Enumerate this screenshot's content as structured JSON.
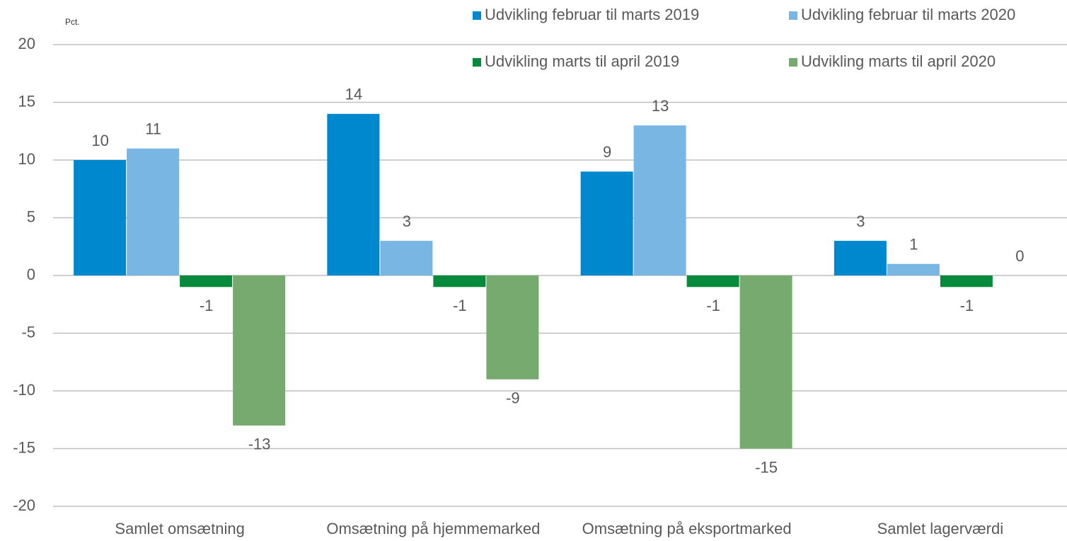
{
  "chart_data": {
    "type": "bar",
    "y_label": "Pct.",
    "categories": [
      "Samlet omsætning",
      "Omsætning på hjemmemarked",
      "Omsætning på eksportmarked",
      "Samlet lagerværdi"
    ],
    "series": [
      {
        "name": "Udvikling februar til marts 2019",
        "color": "#0088cf",
        "values": [
          10,
          14,
          9,
          3
        ]
      },
      {
        "name": "Udvikling februar til marts 2020",
        "color": "#7ab6e4",
        "values": [
          11,
          3,
          13,
          1
        ]
      },
      {
        "name": "Udvikling marts til april 2019",
        "color": "#078a3c",
        "values": [
          -1,
          -1,
          -1,
          -1
        ]
      },
      {
        "name": "Udvikling marts til april 2020",
        "color": "#77aa6f",
        "values": [
          -13,
          -9,
          -15,
          0
        ]
      }
    ],
    "ylim": [
      -20,
      20
    ],
    "yticks": [
      -20,
      -15,
      -10,
      -5,
      0,
      5,
      10,
      15,
      20
    ],
    "grid": true,
    "legend": "top-right"
  }
}
